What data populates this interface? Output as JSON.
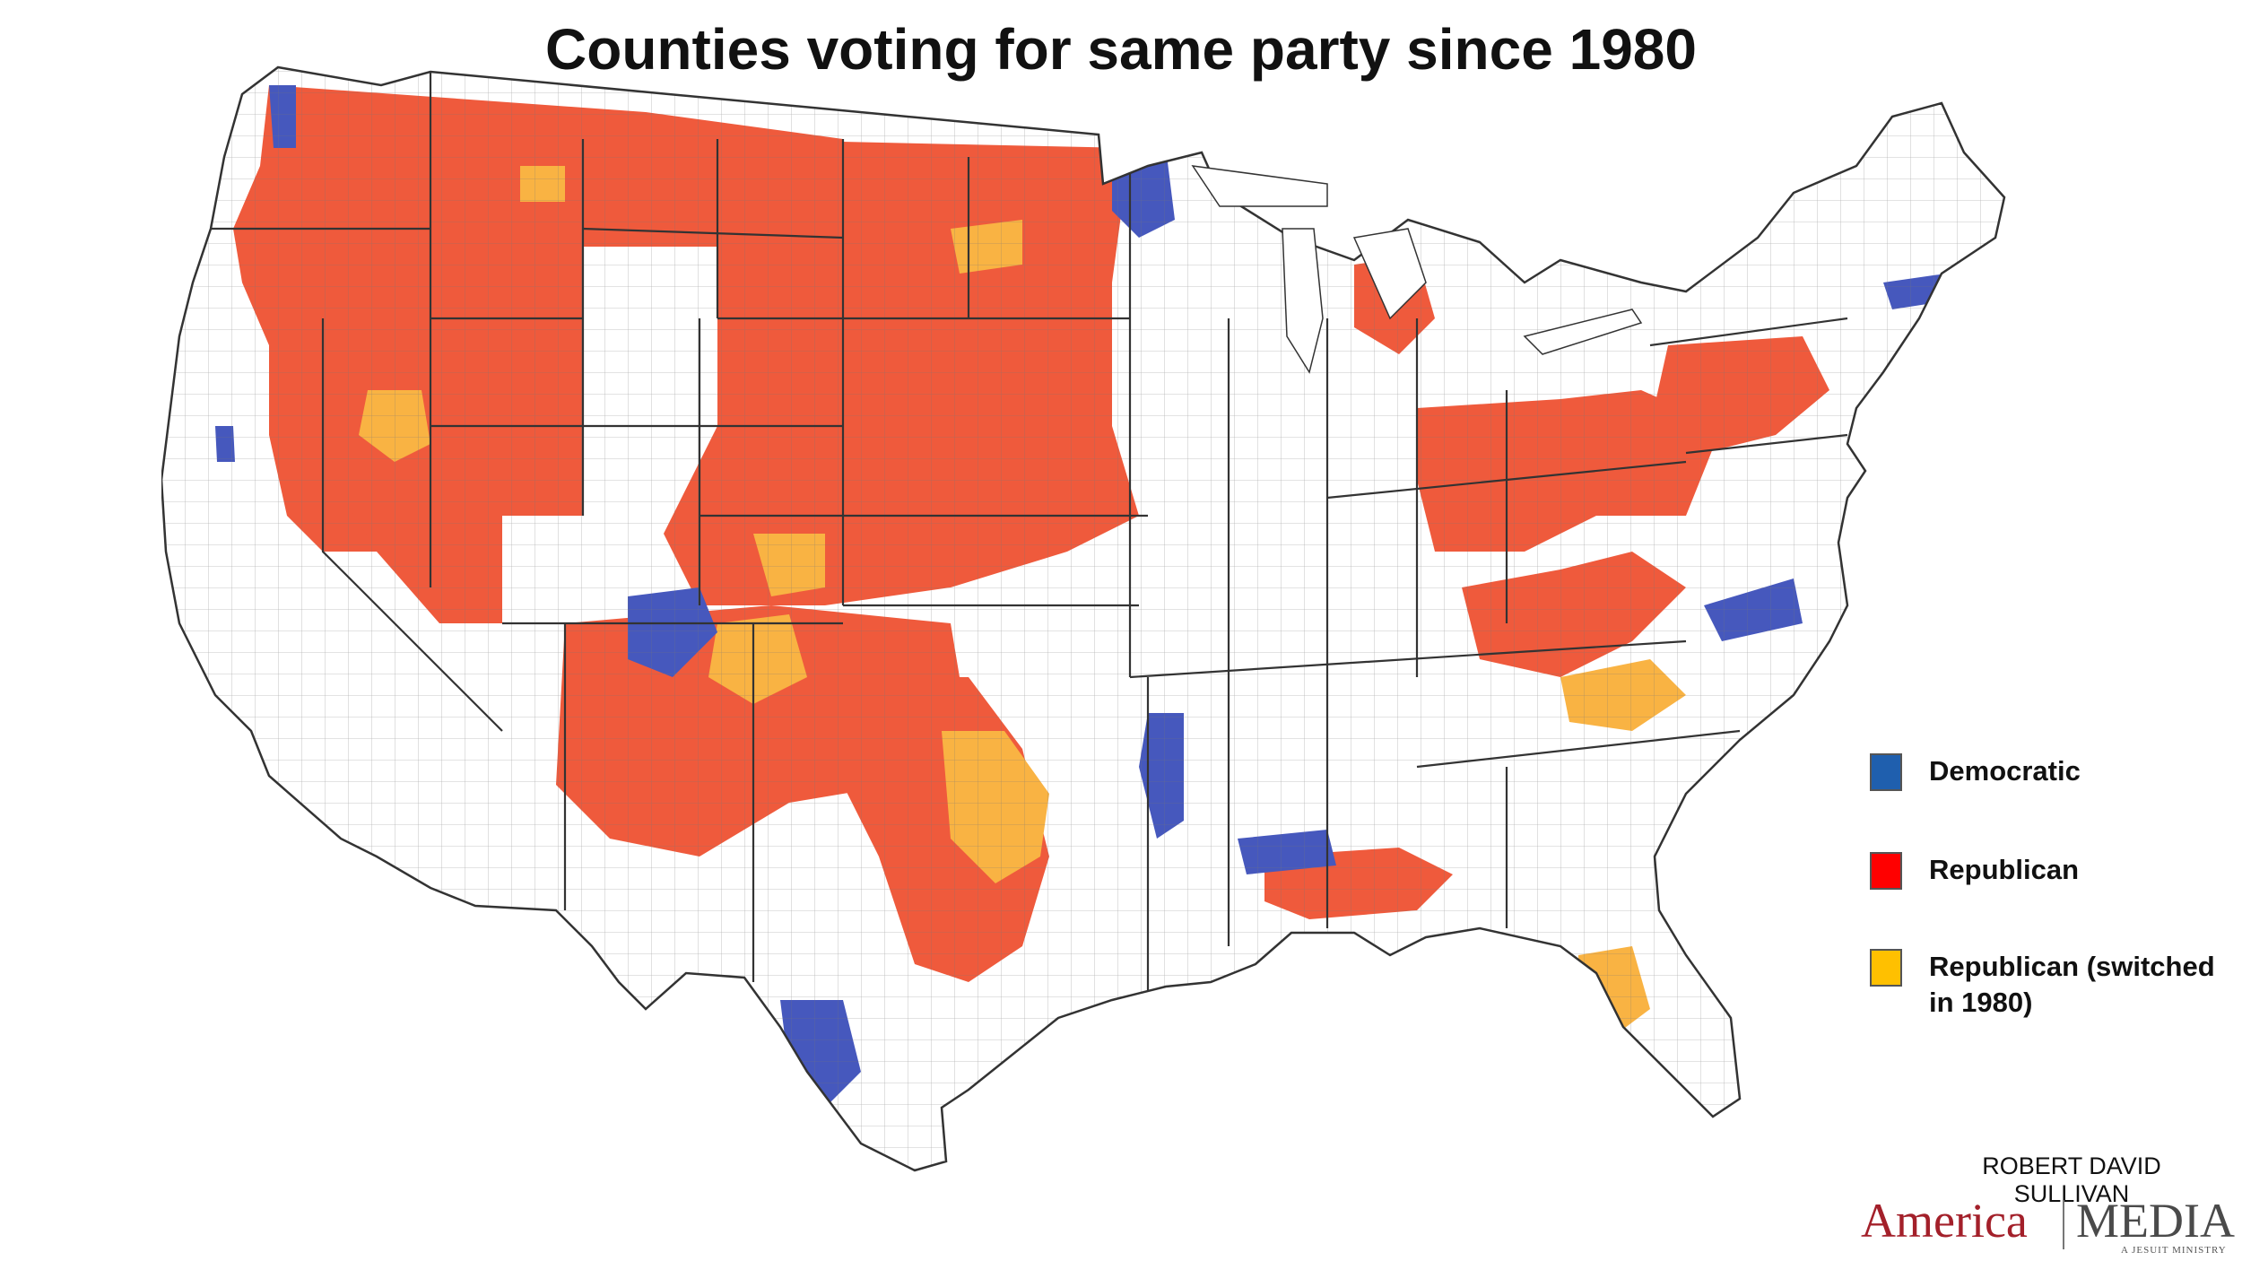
{
  "title": "Counties voting for same party since 1980",
  "legend": {
    "items": [
      {
        "label": "Democratic",
        "color": "#1f5fae"
      },
      {
        "label": "Republican",
        "color": "#ff0000"
      },
      {
        "label": "Republican (switched in 1980)",
        "color": "#ffc000"
      }
    ]
  },
  "map": {
    "colors": {
      "democratic_fill": "#4658bd",
      "republican_fill": "#ef5a3c",
      "switched_fill": "#f9b343",
      "no_streak_fill": "#ffffff",
      "border": "#3a3a3a"
    }
  },
  "credit": {
    "author": "ROBERT DAVID SULLIVAN",
    "brand_left": "America",
    "brand_right": "MEDIA",
    "brand_tagline": "A JESUIT MINISTRY"
  }
}
